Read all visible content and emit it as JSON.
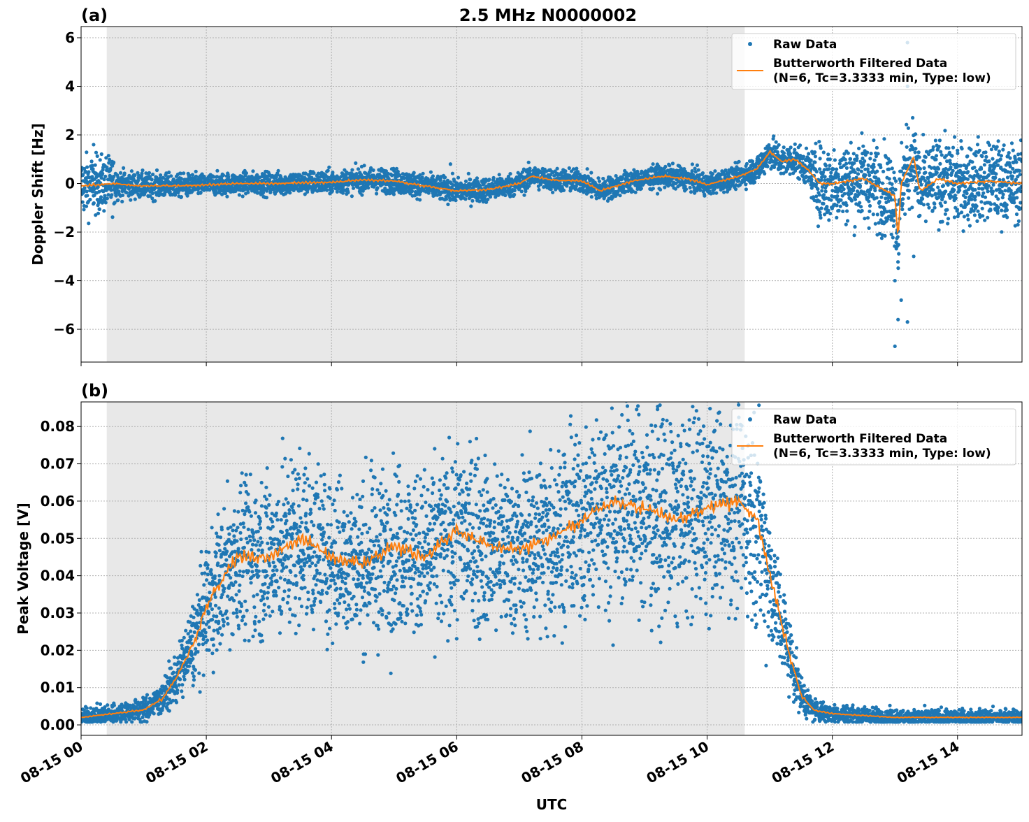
{
  "title": "2.5 MHz N0000002",
  "xlabel": "UTC",
  "chart_data": [
    {
      "type": "scatter",
      "panel_label": "(a)",
      "ylabel": "Doppler Shift [Hz]",
      "xlim_hours": [
        0,
        15.03
      ],
      "ylim": [
        -7.35,
        6.46
      ],
      "yticks": [
        6,
        4,
        2,
        0,
        -2,
        -4,
        -6
      ],
      "ytick_labels": [
        "6",
        "4",
        "2",
        "0",
        "−2",
        "−4",
        "−6"
      ],
      "grid": true,
      "shaded_interval_hours": [
        0.41,
        10.6
      ],
      "legend": {
        "placement": "top-right",
        "entries": [
          "Raw Data",
          "Butterworth Filtered Data",
          "(N=6, Tc=3.3333 min, Type: low)"
        ]
      },
      "filtered": {
        "x_hours": [
          0,
          0.5,
          1,
          1.5,
          2,
          2.5,
          3,
          4,
          4.5,
          5,
          5.5,
          6,
          6.5,
          7,
          7.2,
          7.5,
          8,
          8.3,
          8.8,
          9.3,
          9.7,
          10,
          10.5,
          10.8,
          11,
          11.2,
          11.4,
          11.6,
          11.8,
          12,
          12.5,
          13,
          13.05,
          13.1,
          13.3,
          13.4,
          13.7,
          14,
          14.5,
          15
        ],
        "y": [
          -0.1,
          0,
          -0.1,
          -0.1,
          -0.05,
          0,
          0,
          0.05,
          0.15,
          0.1,
          -0.1,
          -0.3,
          -0.25,
          0,
          0.3,
          0.15,
          0.1,
          -0.3,
          0.1,
          0.3,
          0.2,
          -0.05,
          0.3,
          0.6,
          1.3,
          0.9,
          1.0,
          0.6,
          0,
          0,
          0.2,
          -0.5,
          -2.3,
          0,
          1.1,
          -0.3,
          0.2,
          0,
          0.1,
          0
        ]
      },
      "raw_spread": {
        "x_hours": [
          0,
          0.5,
          0.6,
          2,
          5,
          10.5,
          11,
          11.6,
          11.8,
          13,
          13.1,
          15
        ],
        "half_width": [
          1.1,
          1.0,
          0.5,
          0.4,
          0.45,
          0.4,
          0.6,
          0.6,
          1.4,
          1.6,
          1.5,
          1.4
        ]
      },
      "raw_outliers": [
        [
          13.0,
          -6.7
        ],
        [
          13.05,
          -5.6
        ],
        [
          13.1,
          -4.8
        ],
        [
          13.2,
          -5.7
        ],
        [
          13.2,
          5.8
        ],
        [
          13.2,
          4.0
        ],
        [
          13.0,
          -4.0
        ],
        [
          13.3,
          -3.0
        ],
        [
          5.9,
          0.8
        ],
        [
          0.2,
          1.6
        ]
      ]
    },
    {
      "type": "scatter",
      "panel_label": "(b)",
      "ylabel": "Peak Voltage [V]",
      "xlim_hours": [
        0,
        15.03
      ],
      "ylim": [
        -0.0028,
        0.0866
      ],
      "yticks": [
        0.08,
        0.07,
        0.06,
        0.05,
        0.04,
        0.03,
        0.02,
        0.01,
        0.0
      ],
      "ytick_labels": [
        "0.08",
        "0.07",
        "0.06",
        "0.05",
        "0.04",
        "0.03",
        "0.02",
        "0.01",
        "0.00"
      ],
      "grid": true,
      "shaded_interval_hours": [
        0.41,
        10.6
      ],
      "legend": {
        "placement": "top-right",
        "entries": [
          "Raw Data",
          "Butterworth Filtered Data",
          "(N=6, Tc=3.3333 min, Type: low)"
        ]
      },
      "xtick_hours": [
        0,
        2,
        4,
        6,
        8,
        10,
        12,
        14
      ],
      "xtick_labels": [
        "08-15 00",
        "08-15 02",
        "08-15 04",
        "08-15 06",
        "08-15 08",
        "08-15 10",
        "08-15 12",
        "08-15 14"
      ],
      "filtered": {
        "x_hours": [
          0,
          0.5,
          1,
          1.3,
          1.5,
          1.8,
          2,
          2.3,
          2.5,
          3,
          3.5,
          4,
          4.5,
          5,
          5.5,
          6,
          6.5,
          7,
          7.5,
          8,
          8.5,
          9,
          9.5,
          10,
          10.5,
          10.8,
          11,
          11.3,
          11.5,
          11.7,
          12,
          13,
          15
        ],
        "y": [
          0.002,
          0.003,
          0.004,
          0.007,
          0.012,
          0.022,
          0.032,
          0.04,
          0.045,
          0.045,
          0.05,
          0.045,
          0.043,
          0.048,
          0.045,
          0.052,
          0.048,
          0.047,
          0.05,
          0.055,
          0.06,
          0.058,
          0.055,
          0.058,
          0.06,
          0.055,
          0.04,
          0.02,
          0.008,
          0.004,
          0.003,
          0.002,
          0.002
        ]
      }
    }
  ]
}
